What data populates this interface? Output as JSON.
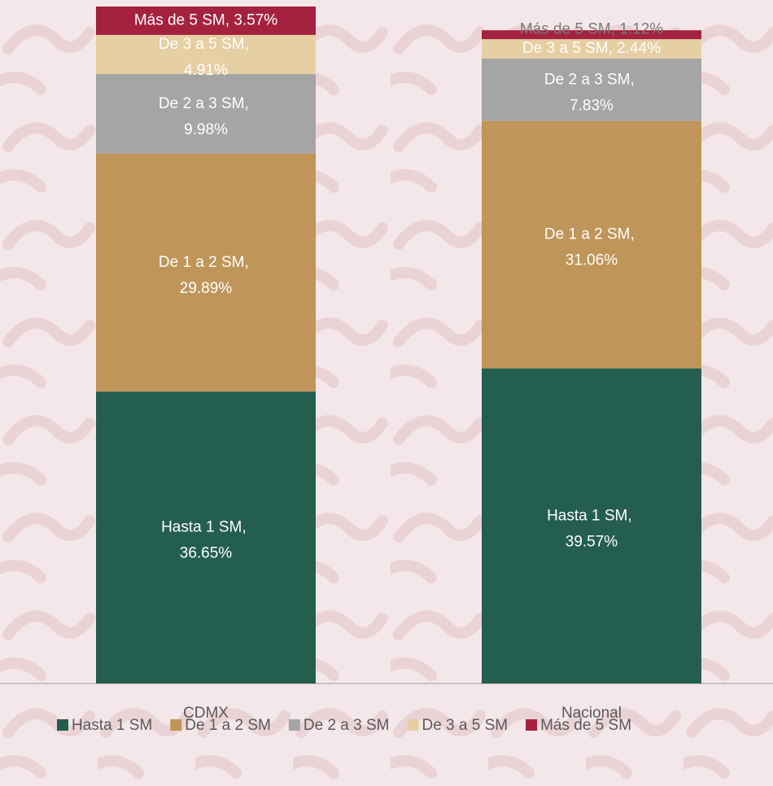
{
  "chart_data": {
    "type": "stacked_bar",
    "categories": [
      "CDMX",
      "Nacional"
    ],
    "series": [
      {
        "name": "Hasta 1 SM",
        "color": "#245e4f",
        "values": [
          36.65,
          39.57
        ],
        "value_labels": [
          "Hasta 1 SM, 36.65%",
          "Hasta 1 SM, 39.57%"
        ]
      },
      {
        "name": "De 1 a 2 SM",
        "color": "#bf9559",
        "values": [
          29.89,
          31.06
        ],
        "value_labels": [
          "De 1 a 2 SM, 29.89%",
          "De 1 a 2 SM, 31.06%"
        ]
      },
      {
        "name": "De 2 a 3 SM",
        "color": "#a5a5a5",
        "values": [
          9.98,
          7.83
        ],
        "value_labels": [
          "De 2 a 3 SM, 9.98%",
          "De 2 a 3 SM, 7.83%"
        ]
      },
      {
        "name": "De 3 a 5 SM",
        "color": "#e6cfa3",
        "values": [
          4.91,
          2.44
        ],
        "value_labels": [
          "De 3 a 5 SM, 4.91%",
          "De 3 a 5 SM, 2.44%"
        ]
      },
      {
        "name": "Más de 5 SM",
        "color": "#a4223f",
        "values": [
          3.57,
          1.12
        ],
        "value_labels": [
          "Más de 5 SM, 3.57%",
          "Más de 5 SM, 1.12%"
        ]
      }
    ]
  }
}
